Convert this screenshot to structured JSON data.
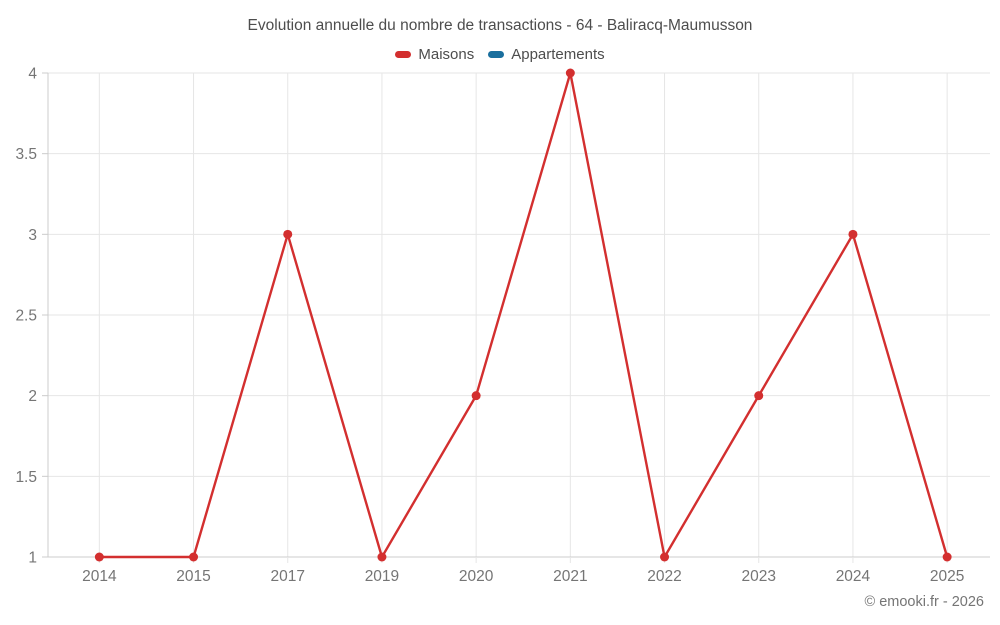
{
  "title": "Evolution annuelle du nombre de transactions - 64 - Baliracq-Maumusson",
  "footer": "© emooki.fr - 2026",
  "colors": {
    "maisons": "#d32f2f",
    "appartements": "#1a6f9e",
    "grid": "#e6e6e6",
    "axis": "#cccccc",
    "tick_label": "#757575",
    "text": "#4d4d4d"
  },
  "chart_data": {
    "type": "line",
    "title": "Evolution annuelle du nombre de transactions - 64 - Baliracq-Maumusson",
    "categories": [
      "2014",
      "2015",
      "2017",
      "2019",
      "2020",
      "2021",
      "2022",
      "2023",
      "2024",
      "2025"
    ],
    "series": [
      {
        "name": "Maisons",
        "color": "#d32f2f",
        "values": [
          1,
          1,
          3,
          1,
          2,
          4,
          1,
          2,
          3,
          1
        ]
      },
      {
        "name": "Appartements",
        "color": "#1a6f9e",
        "values": []
      }
    ],
    "xlabel": "",
    "ylabel": "",
    "yticks": [
      1,
      1.5,
      2,
      2.5,
      3,
      3.5,
      4
    ],
    "ylim": [
      1,
      4
    ],
    "grid": true,
    "legend_position": "top"
  }
}
